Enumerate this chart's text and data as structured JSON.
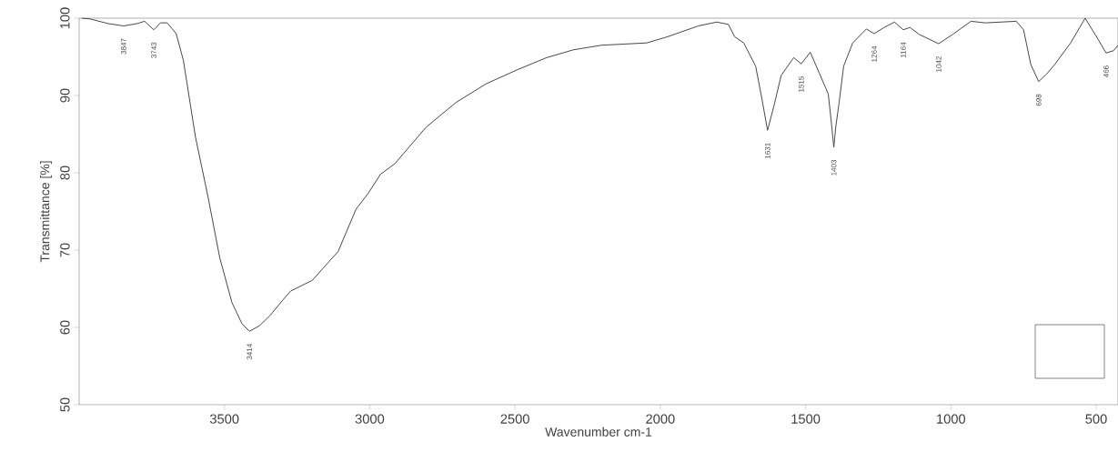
{
  "chart_data": {
    "type": "line",
    "xlabel": "Wavenumber cm-1",
    "ylabel": "Transmittance [%]",
    "x": [
      3990,
      3962,
      3900,
      3847,
      3800,
      3775,
      3743,
      3720,
      3697,
      3666,
      3641,
      3600,
      3556,
      3516,
      3474,
      3440,
      3414,
      3380,
      3344,
      3300,
      3272,
      3197,
      3162,
      3109,
      3047,
      3006,
      2963,
      2913,
      2806,
      2703,
      2600,
      2494,
      2391,
      2300,
      2203,
      2047,
      1975,
      1869,
      1806,
      1766,
      1744,
      1713,
      1672,
      1650,
      1631,
      1610,
      1584,
      1541,
      1515,
      1484,
      1453,
      1422,
      1410,
      1403,
      1396,
      1385,
      1369,
      1338,
      1291,
      1264,
      1230,
      1194,
      1164,
      1141,
      1109,
      1042,
      994,
      931,
      881,
      775,
      750,
      725,
      698,
      670,
      641,
      588,
      538,
      494,
      466,
      440,
      425
    ],
    "values": [
      100,
      99.9,
      99.3,
      99,
      99.3,
      99.6,
      98.5,
      99.4,
      99.4,
      98,
      94.5,
      84.7,
      76.8,
      69,
      63.2,
      60.5,
      59.5,
      60.2,
      61.5,
      63.5,
      64.7,
      66.1,
      67.6,
      69.8,
      75.3,
      77.3,
      79.8,
      81.2,
      85.9,
      89.1,
      91.5,
      93.3,
      94.9,
      95.9,
      96.5,
      96.8,
      97.6,
      99,
      99.5,
      99.2,
      97.6,
      96.8,
      93.8,
      89.5,
      85.5,
      88.5,
      92.6,
      94.9,
      94.1,
      95.6,
      92.9,
      90.2,
      86,
      83.3,
      86,
      89,
      93.8,
      96.8,
      98.6,
      98,
      98.8,
      99.5,
      98.5,
      98.8,
      97.9,
      96.7,
      97.9,
      99.6,
      99.4,
      99.6,
      98.5,
      94,
      91.8,
      92.8,
      94.1,
      96.8,
      100,
      97.3,
      95.5,
      95.8,
      96.5
    ],
    "color": "#3a3a3a",
    "marker": "none",
    "line_style": "solid",
    "xlim": [
      4000,
      425
    ],
    "ylim": [
      50,
      100
    ],
    "xticks": [
      3500,
      3000,
      2500,
      2000,
      1500,
      1000,
      500
    ],
    "yticks": [
      50,
      60,
      70,
      80,
      90,
      100
    ],
    "annotations": [
      {
        "text": "3847",
        "x": 3847,
        "y": 99
      },
      {
        "text": "3743",
        "x": 3743,
        "y": 98.5
      },
      {
        "text": "3414",
        "x": 3414,
        "y": 59.5
      },
      {
        "text": "1631",
        "x": 1631,
        "y": 85.5
      },
      {
        "text": "1515",
        "x": 1515,
        "y": 94.1
      },
      {
        "text": "1403",
        "x": 1403,
        "y": 83.3
      },
      {
        "text": "1264",
        "x": 1264,
        "y": 98
      },
      {
        "text": "1164",
        "x": 1164,
        "y": 98.5
      },
      {
        "text": "1042",
        "x": 1042,
        "y": 96.7
      },
      {
        "text": "698",
        "x": 698,
        "y": 91.8
      },
      {
        "text": "466",
        "x": 466,
        "y": 95.5
      }
    ]
  }
}
